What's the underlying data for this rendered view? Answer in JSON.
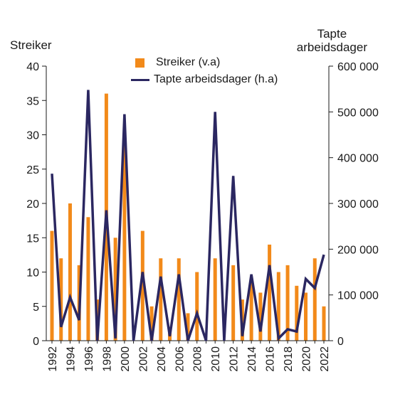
{
  "left_axis_title": "Streiker",
  "right_axis_title_line1": "Tapte",
  "right_axis_title_line2": "arbeidsdager",
  "legend": {
    "bar_label": "Streiker (v.a)",
    "line_label": "Tapte arbeidsdager (h.a)"
  },
  "colors": {
    "bar": "#f28a1a",
    "line": "#2b2761",
    "axis": "#1a1a1a"
  },
  "chart_data": {
    "type": "bar+line",
    "x": [
      1992,
      1993,
      1994,
      1995,
      1996,
      1997,
      1998,
      1999,
      2000,
      2001,
      2002,
      2003,
      2004,
      2005,
      2006,
      2007,
      2008,
      2009,
      2010,
      2011,
      2012,
      2013,
      2014,
      2015,
      2016,
      2017,
      2018,
      2019,
      2020,
      2021,
      2022
    ],
    "x_tick_labels": [
      "1992",
      "1994",
      "1996",
      "1998",
      "2000",
      "2002",
      "2004",
      "2006",
      "2008",
      "2010",
      "2012",
      "2014",
      "2016",
      "2018",
      "2020",
      "2022"
    ],
    "series": [
      {
        "name": "Streiker (v.a)",
        "kind": "bar",
        "axis": "left",
        "values": [
          16,
          12,
          20,
          11,
          18,
          6,
          36,
          15,
          29,
          0,
          16,
          5,
          12,
          2,
          12,
          4,
          10,
          0,
          12,
          0,
          11,
          6,
          9,
          7,
          14,
          10,
          11,
          8,
          7,
          12,
          5
        ]
      },
      {
        "name": "Tapte arbeidsdager (h.a)",
        "kind": "line",
        "axis": "right",
        "values": [
          365000,
          30000,
          95000,
          45000,
          548000,
          0,
          285000,
          5000,
          495000,
          0,
          150000,
          0,
          140000,
          10000,
          145000,
          0,
          60000,
          0,
          500000,
          0,
          360000,
          10000,
          145000,
          20000,
          165000,
          5000,
          25000,
          20000,
          135000,
          115000,
          188000
        ]
      }
    ],
    "y_left": {
      "min": 0,
      "max": 40,
      "ticks": [
        0,
        5,
        10,
        15,
        20,
        25,
        30,
        35,
        40
      ],
      "tick_labels": [
        "0",
        "5",
        "10",
        "15",
        "20",
        "25",
        "30",
        "35",
        "40"
      ]
    },
    "y_right": {
      "min": 0,
      "max": 600000,
      "ticks": [
        0,
        100000,
        200000,
        300000,
        400000,
        500000,
        600000
      ],
      "tick_labels": [
        "0",
        "100 000",
        "200 000",
        "300 000",
        "400 000",
        "500 000",
        "600 000"
      ]
    },
    "grid": false
  }
}
